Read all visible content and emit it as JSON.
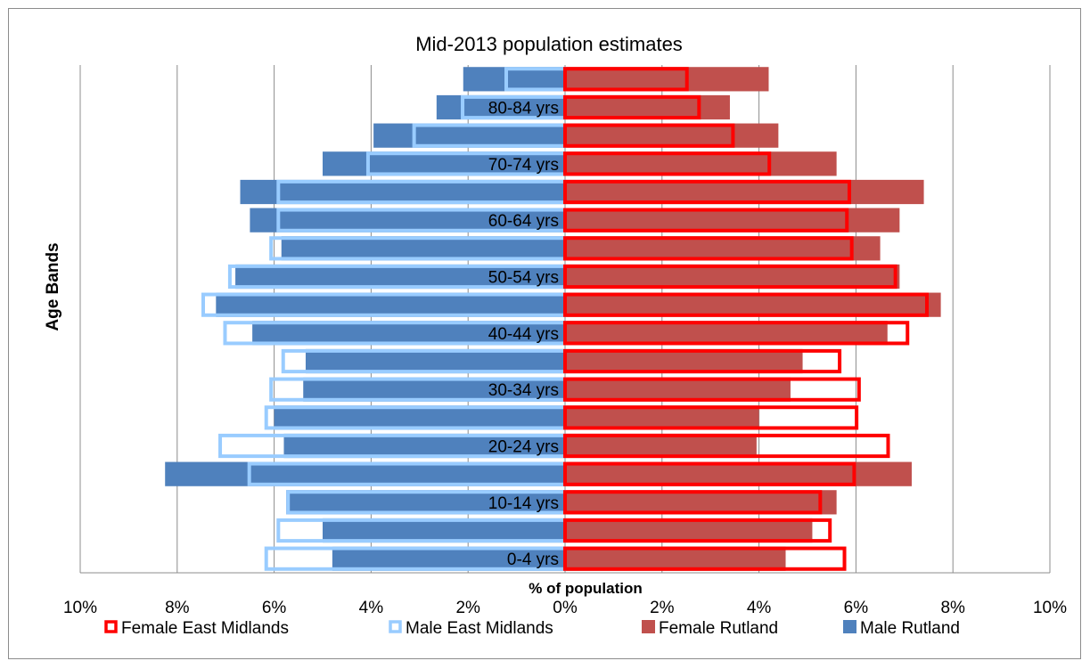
{
  "chart_data": {
    "type": "bar",
    "title": "Mid-2013 population estimates",
    "xlabel": "% of population",
    "ylabel": "Age Bands",
    "xlim": [
      -10,
      10
    ],
    "x_ticks": [
      "10%",
      "8%",
      "6%",
      "4%",
      "2%",
      "0%",
      "2%",
      "4%",
      "6%",
      "8%",
      "10%"
    ],
    "x_tick_values": [
      -10,
      -8,
      -6,
      -4,
      -2,
      0,
      2,
      4,
      6,
      8,
      10
    ],
    "categories": [
      "0-4 yrs",
      "",
      "10-14 yrs",
      "",
      "20-24 yrs",
      "",
      "30-34 yrs",
      "",
      "40-44 yrs",
      "",
      "50-54 yrs",
      "",
      "60-64 yrs",
      "",
      "70-74 yrs",
      "",
      "80-84 yrs",
      ""
    ],
    "grid": "vertical",
    "legend_position": "bottom",
    "series": [
      {
        "name": "Female East Midlands",
        "style": "outline",
        "color": "#ff0000",
        "side": "right",
        "values": [
          5.8,
          5.5,
          5.3,
          6.0,
          6.7,
          6.05,
          6.1,
          5.7,
          7.1,
          7.5,
          6.85,
          5.95,
          5.85,
          5.9,
          4.25,
          3.5,
          2.8,
          2.55
        ]
      },
      {
        "name": "Male East Midlands",
        "style": "outline",
        "color": "#99ccff",
        "side": "left",
        "values": [
          6.2,
          5.95,
          5.75,
          6.55,
          7.15,
          6.2,
          6.1,
          5.85,
          7.05,
          7.5,
          6.95,
          6.1,
          5.95,
          5.95,
          4.1,
          3.15,
          2.15,
          1.25
        ]
      },
      {
        "name": "Female Rutland",
        "style": "filled",
        "color": "#c0504d",
        "side": "right",
        "values": [
          4.55,
          5.1,
          5.6,
          7.15,
          3.95,
          4.0,
          4.65,
          4.9,
          6.65,
          7.75,
          6.9,
          6.5,
          6.9,
          7.4,
          5.6,
          4.4,
          3.4,
          4.2
        ]
      },
      {
        "name": "Male Rutland",
        "style": "filled",
        "color": "#4f81bd",
        "side": "left",
        "values": [
          4.8,
          5.0,
          5.75,
          8.25,
          5.8,
          6.0,
          5.4,
          5.35,
          6.45,
          7.2,
          6.8,
          5.85,
          6.5,
          6.7,
          5.0,
          3.95,
          2.65,
          2.1
        ]
      }
    ]
  }
}
